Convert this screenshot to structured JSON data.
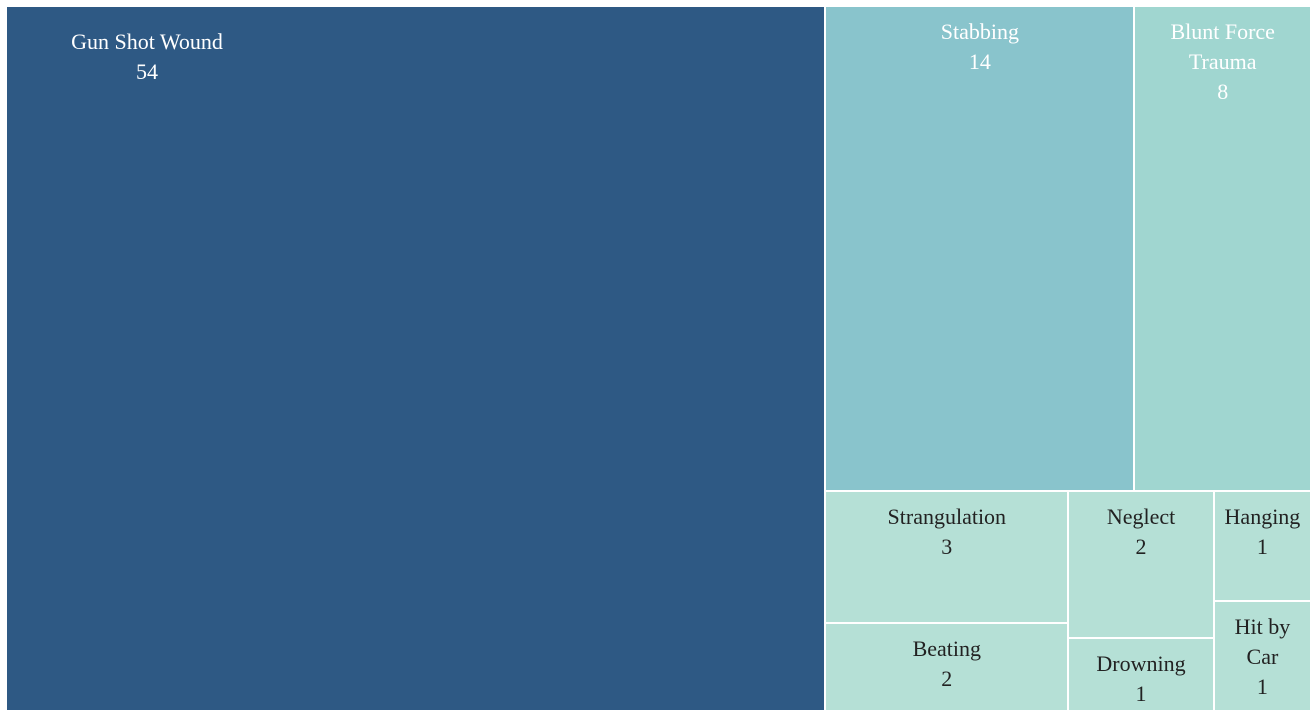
{
  "chart_data": {
    "type": "treemap",
    "categories": [
      "Gun Shot Wound",
      "Stabbing",
      "Blunt Force Trauma",
      "Strangulation",
      "Beating",
      "Neglect",
      "Drowning",
      "Hanging",
      "Hit by Car"
    ],
    "values": [
      54,
      14,
      8,
      3,
      2,
      2,
      1,
      1,
      1
    ],
    "colors": [
      "#2e5984",
      "#89c4cc",
      "#a0d6d0",
      "#b5e0d6",
      "#b5e0d6",
      "#b5e0d6",
      "#b5e0d6",
      "#b5e0d6",
      "#b5e0d6"
    ]
  }
}
